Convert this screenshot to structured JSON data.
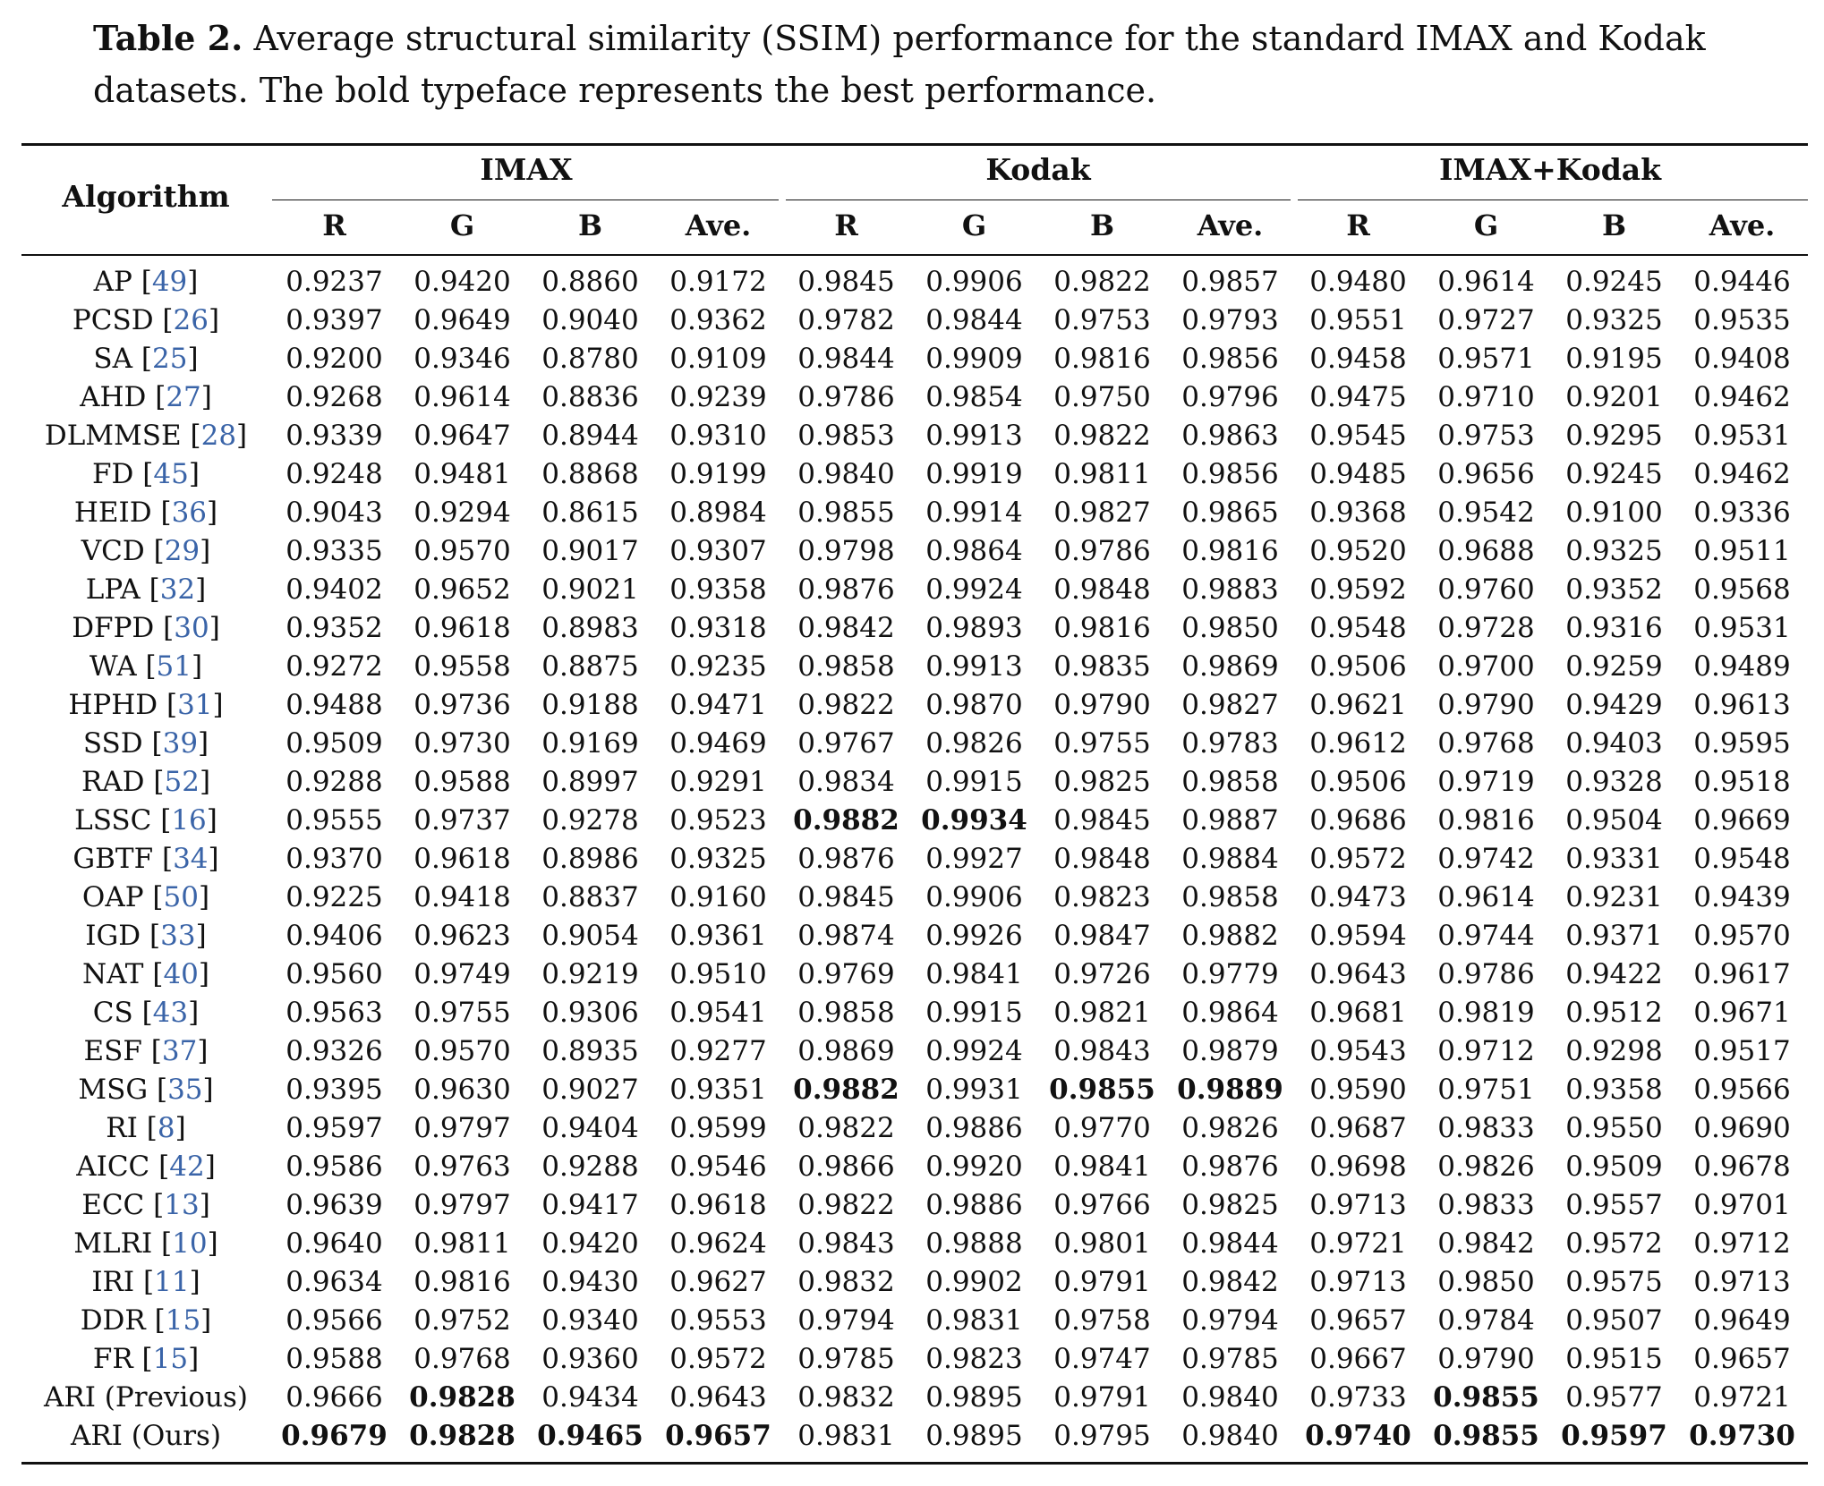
{
  "caption": {
    "label": "Table 2.",
    "text": " Average structural similarity (SSIM) performance for the standard IMAX and Kodak datasets. The bold typeface represents the best performance."
  },
  "header": {
    "algorithm": "Algorithm",
    "groups": [
      "IMAX",
      "Kodak",
      "IMAX+Kodak"
    ],
    "sub": [
      "R",
      "G",
      "B",
      "Ave."
    ]
  },
  "rows": [
    {
      "name": "AP",
      "ref": "49",
      "values": [
        "0.9237",
        "0.9420",
        "0.8860",
        "0.9172",
        "0.9845",
        "0.9906",
        "0.9822",
        "0.9857",
        "0.9480",
        "0.9614",
        "0.9245",
        "0.9446"
      ],
      "bold": []
    },
    {
      "name": "PCSD",
      "ref": "26",
      "values": [
        "0.9397",
        "0.9649",
        "0.9040",
        "0.9362",
        "0.9782",
        "0.9844",
        "0.9753",
        "0.9793",
        "0.9551",
        "0.9727",
        "0.9325",
        "0.9535"
      ],
      "bold": []
    },
    {
      "name": "SA",
      "ref": "25",
      "values": [
        "0.9200",
        "0.9346",
        "0.8780",
        "0.9109",
        "0.9844",
        "0.9909",
        "0.9816",
        "0.9856",
        "0.9458",
        "0.9571",
        "0.9195",
        "0.9408"
      ],
      "bold": []
    },
    {
      "name": "AHD",
      "ref": "27",
      "values": [
        "0.9268",
        "0.9614",
        "0.8836",
        "0.9239",
        "0.9786",
        "0.9854",
        "0.9750",
        "0.9796",
        "0.9475",
        "0.9710",
        "0.9201",
        "0.9462"
      ],
      "bold": []
    },
    {
      "name": "DLMMSE",
      "ref": "28",
      "values": [
        "0.9339",
        "0.9647",
        "0.8944",
        "0.9310",
        "0.9853",
        "0.9913",
        "0.9822",
        "0.9863",
        "0.9545",
        "0.9753",
        "0.9295",
        "0.9531"
      ],
      "bold": []
    },
    {
      "name": "FD",
      "ref": "45",
      "values": [
        "0.9248",
        "0.9481",
        "0.8868",
        "0.9199",
        "0.9840",
        "0.9919",
        "0.9811",
        "0.9856",
        "0.9485",
        "0.9656",
        "0.9245",
        "0.9462"
      ],
      "bold": []
    },
    {
      "name": "HEID",
      "ref": "36",
      "values": [
        "0.9043",
        "0.9294",
        "0.8615",
        "0.8984",
        "0.9855",
        "0.9914",
        "0.9827",
        "0.9865",
        "0.9368",
        "0.9542",
        "0.9100",
        "0.9336"
      ],
      "bold": []
    },
    {
      "name": "VCD ",
      "ref": "29",
      "values": [
        "0.9335",
        "0.9570",
        "0.9017",
        "0.9307",
        "0.9798",
        "0.9864",
        "0.9786",
        "0.9816",
        "0.9520",
        "0.9688",
        "0.9325",
        "0.9511"
      ],
      "bold": []
    },
    {
      "name": "LPA",
      "ref": "32",
      "values": [
        "0.9402",
        "0.9652",
        "0.9021",
        "0.9358",
        "0.9876",
        "0.9924",
        "0.9848",
        "0.9883",
        "0.9592",
        "0.9760",
        "0.9352",
        "0.9568"
      ],
      "bold": []
    },
    {
      "name": "DFPD",
      "ref": "30",
      "values": [
        "0.9352",
        "0.9618",
        "0.8983",
        "0.9318",
        "0.9842",
        "0.9893",
        "0.9816",
        "0.9850",
        "0.9548",
        "0.9728",
        "0.9316",
        "0.9531"
      ],
      "bold": []
    },
    {
      "name": "WA",
      "ref": "51",
      "values": [
        "0.9272",
        "0.9558",
        "0.8875",
        "0.9235",
        "0.9858",
        "0.9913",
        "0.9835",
        "0.9869",
        "0.9506",
        "0.9700",
        "0.9259",
        "0.9489"
      ],
      "bold": []
    },
    {
      "name": "HPHD",
      "ref": "31",
      "values": [
        "0.9488",
        "0.9736",
        "0.9188",
        "0.9471",
        "0.9822",
        "0.9870",
        "0.9790",
        "0.9827",
        "0.9621",
        "0.9790",
        "0.9429",
        "0.9613"
      ],
      "bold": []
    },
    {
      "name": "SSD",
      "ref": "39",
      "values": [
        "0.9509",
        "0.9730",
        "0.9169",
        "0.9469",
        "0.9767",
        "0.9826",
        "0.9755",
        "0.9783",
        "0.9612",
        "0.9768",
        "0.9403",
        "0.9595"
      ],
      "bold": []
    },
    {
      "name": "RAD",
      "ref": "52",
      "values": [
        "0.9288",
        "0.9588",
        "0.8997",
        "0.9291",
        "0.9834",
        "0.9915",
        "0.9825",
        "0.9858",
        "0.9506",
        "0.9719",
        "0.9328",
        "0.9518"
      ],
      "bold": []
    },
    {
      "name": "LSSC",
      "ref": "16",
      "values": [
        "0.9555",
        "0.9737",
        "0.9278",
        "0.9523",
        "0.9882",
        "0.9934",
        "0.9845",
        "0.9887",
        "0.9686",
        "0.9816",
        "0.9504",
        "0.9669"
      ],
      "bold": [
        4,
        5
      ]
    },
    {
      "name": "GBTF",
      "ref": "34",
      "values": [
        "0.9370",
        "0.9618",
        "0.8986",
        "0.9325",
        "0.9876",
        "0.9927",
        "0.9848",
        "0.9884",
        "0.9572",
        "0.9742",
        "0.9331",
        "0.9548"
      ],
      "bold": []
    },
    {
      "name": "OAP",
      "ref": "50",
      "values": [
        "0.9225",
        "0.9418",
        "0.8837",
        "0.9160",
        "0.9845",
        "0.9906",
        "0.9823",
        "0.9858",
        "0.9473",
        "0.9614",
        "0.9231",
        "0.9439"
      ],
      "bold": []
    },
    {
      "name": "IGD",
      "ref": "33",
      "values": [
        "0.9406",
        "0.9623",
        "0.9054",
        "0.9361",
        "0.9874",
        "0.9926",
        "0.9847",
        "0.9882",
        "0.9594",
        "0.9744",
        "0.9371",
        "0.9570"
      ],
      "bold": []
    },
    {
      "name": "NAT",
      "ref": "40",
      "values": [
        "0.9560",
        "0.9749",
        "0.9219",
        "0.9510",
        "0.9769",
        "0.9841",
        "0.9726",
        "0.9779",
        "0.9643",
        "0.9786",
        "0.9422",
        "0.9617"
      ],
      "bold": []
    },
    {
      "name": "CS",
      "ref": "43",
      "values": [
        "0.9563",
        "0.9755",
        "0.9306",
        "0.9541",
        "0.9858",
        "0.9915",
        "0.9821",
        "0.9864",
        "0.9681",
        "0.9819",
        "0.9512",
        "0.9671"
      ],
      "bold": []
    },
    {
      "name": "ESF",
      "ref": "37",
      "values": [
        "0.9326",
        "0.9570",
        "0.8935",
        "0.9277",
        "0.9869",
        "0.9924",
        "0.9843",
        "0.9879",
        "0.9543",
        "0.9712",
        "0.9298",
        "0.9517"
      ],
      "bold": []
    },
    {
      "name": "MSG",
      "ref": "35",
      "values": [
        "0.9395",
        "0.9630",
        "0.9027",
        "0.9351",
        "0.9882",
        "0.9931",
        "0.9855",
        "0.9889",
        "0.9590",
        "0.9751",
        "0.9358",
        "0.9566"
      ],
      "bold": [
        4,
        6,
        7
      ]
    },
    {
      "name": "RI",
      "ref": "8",
      "values": [
        "0.9597",
        "0.9797",
        "0.9404",
        "0.9599",
        "0.9822",
        "0.9886",
        "0.9770",
        "0.9826",
        "0.9687",
        "0.9833",
        "0.9550",
        "0.9690"
      ],
      "bold": []
    },
    {
      "name": "AICC",
      "ref": "42",
      "values": [
        "0.9586",
        "0.9763",
        "0.9288",
        "0.9546",
        "0.9866",
        "0.9920",
        "0.9841",
        "0.9876",
        "0.9698",
        "0.9826",
        "0.9509",
        "0.9678"
      ],
      "bold": []
    },
    {
      "name": "ECC",
      "ref": "13",
      "values": [
        "0.9639",
        "0.9797",
        "0.9417",
        "0.9618",
        "0.9822",
        "0.9886",
        "0.9766",
        "0.9825",
        "0.9713",
        "0.9833",
        "0.9557",
        "0.9701"
      ],
      "bold": []
    },
    {
      "name": "MLRI",
      "ref": "10",
      "values": [
        "0.9640",
        "0.9811",
        "0.9420",
        "0.9624",
        "0.9843",
        "0.9888",
        "0.9801",
        "0.9844",
        "0.9721",
        "0.9842",
        "0.9572",
        "0.9712"
      ],
      "bold": []
    },
    {
      "name": "IRI",
      "ref": "11",
      "values": [
        "0.9634",
        "0.9816",
        "0.9430",
        "0.9627",
        "0.9832",
        "0.9902",
        "0.9791",
        "0.9842",
        "0.9713",
        "0.9850",
        "0.9575",
        "0.9713"
      ],
      "bold": []
    },
    {
      "name": "DDR",
      "ref": "15",
      "values": [
        "0.9566",
        "0.9752",
        "0.9340",
        "0.9553",
        "0.9794",
        "0.9831",
        "0.9758",
        "0.9794",
        "0.9657",
        "0.9784",
        "0.9507",
        "0.9649"
      ],
      "bold": []
    },
    {
      "name": "FR",
      "ref": "15",
      "values": [
        "0.9588",
        "0.9768",
        "0.9360",
        "0.9572",
        "0.9785",
        "0.9823",
        "0.9747",
        "0.9785",
        "0.9667",
        "0.9790",
        "0.9515",
        "0.9657"
      ],
      "bold": []
    },
    {
      "name": "ARI (Previous)",
      "ref": "",
      "values": [
        "0.9666",
        "0.9828",
        "0.9434",
        "0.9643",
        "0.9832",
        "0.9895",
        "0.9791",
        "0.9840",
        "0.9733",
        "0.9855",
        "0.9577",
        "0.9721"
      ],
      "bold": [
        1,
        9
      ]
    },
    {
      "name": "ARI (Ours)",
      "ref": "",
      "values": [
        "0.9679",
        "0.9828",
        "0.9465",
        "0.9657",
        "0.9831",
        "0.9895",
        "0.9795",
        "0.9840",
        "0.9740",
        "0.9855",
        "0.9597",
        "0.9730"
      ],
      "bold": [
        0,
        1,
        2,
        3,
        8,
        9,
        10,
        11
      ]
    }
  ]
}
